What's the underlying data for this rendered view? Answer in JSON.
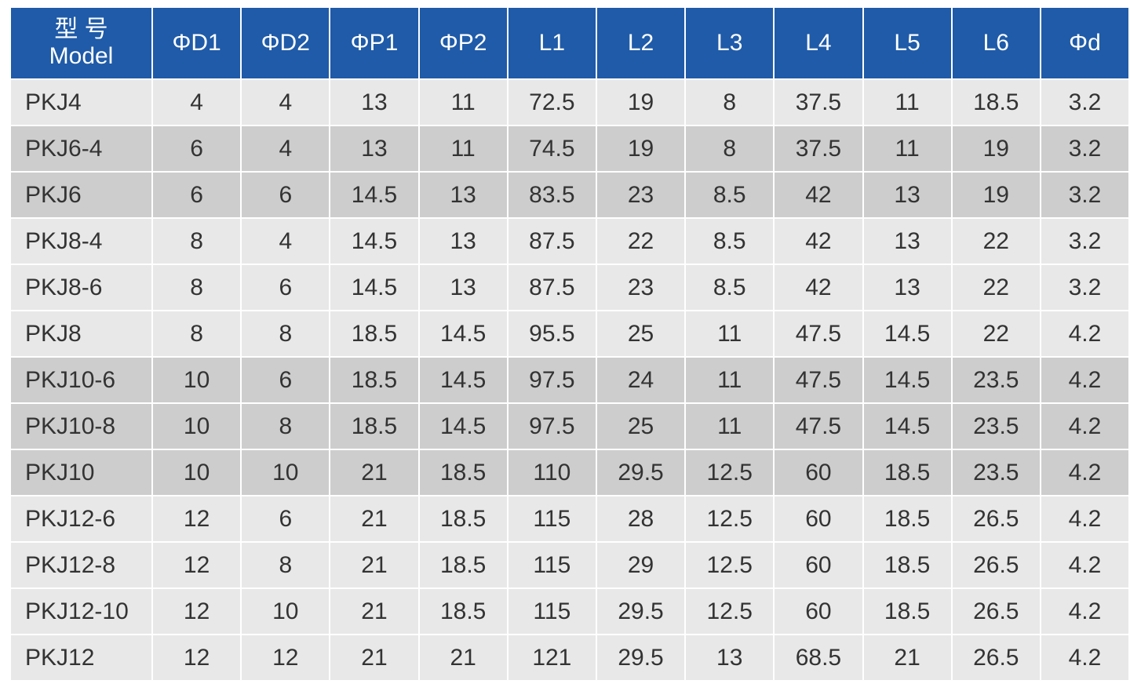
{
  "header": {
    "model_cn": "型 号",
    "model_en": "Model",
    "columns": [
      "ΦD1",
      "ΦD2",
      "ΦP1",
      "ΦP2",
      "L1",
      "L2",
      "L3",
      "L4",
      "L5",
      "L6",
      "Φd"
    ]
  },
  "table": {
    "rows": [
      [
        "PKJ4",
        4,
        4,
        13,
        11,
        72.5,
        19,
        8,
        37.5,
        11,
        18.5,
        3.2
      ],
      [
        "PKJ6-4",
        6,
        4,
        13,
        11,
        74.5,
        19,
        8,
        37.5,
        11,
        19,
        3.2
      ],
      [
        "PKJ6",
        6,
        6,
        14.5,
        13,
        83.5,
        23,
        8.5,
        42,
        13,
        19,
        3.2
      ],
      [
        "PKJ8-4",
        8,
        4,
        14.5,
        13,
        87.5,
        22,
        8.5,
        42,
        13,
        22,
        3.2
      ],
      [
        "PKJ8-6",
        8,
        6,
        14.5,
        13,
        87.5,
        23,
        8.5,
        42,
        13,
        22,
        3.2
      ],
      [
        "PKJ8",
        8,
        8,
        18.5,
        14.5,
        95.5,
        25,
        11,
        47.5,
        14.5,
        22,
        4.2
      ],
      [
        "PKJ10-6",
        10,
        6,
        18.5,
        14.5,
        97.5,
        24,
        11,
        47.5,
        14.5,
        23.5,
        4.2
      ],
      [
        "PKJ10-8",
        10,
        8,
        18.5,
        14.5,
        97.5,
        25,
        11,
        47.5,
        14.5,
        23.5,
        4.2
      ],
      [
        "PKJ10",
        10,
        10,
        21,
        18.5,
        110,
        29.5,
        12.5,
        60,
        18.5,
        23.5,
        4.2
      ],
      [
        "PKJ12-6",
        12,
        6,
        21,
        18.5,
        115,
        28,
        12.5,
        60,
        18.5,
        26.5,
        4.2
      ],
      [
        "PKJ12-8",
        12,
        8,
        21,
        18.5,
        115,
        29,
        12.5,
        60,
        18.5,
        26.5,
        4.2
      ],
      [
        "PKJ12-10",
        12,
        10,
        21,
        18.5,
        115,
        29.5,
        12.5,
        60,
        18.5,
        26.5,
        4.2
      ],
      [
        "PKJ12",
        12,
        12,
        21,
        21,
        121,
        29.5,
        13,
        68.5,
        21,
        26.5,
        4.2
      ]
    ]
  }
}
